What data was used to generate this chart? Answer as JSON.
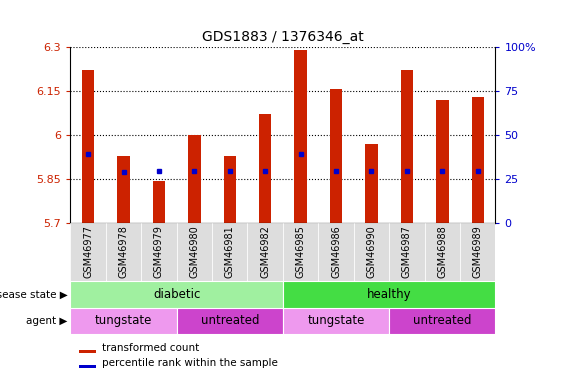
{
  "title": "GDS1883 / 1376346_at",
  "samples": [
    "GSM46977",
    "GSM46978",
    "GSM46979",
    "GSM46980",
    "GSM46981",
    "GSM46982",
    "GSM46985",
    "GSM46986",
    "GSM46990",
    "GSM46987",
    "GSM46988",
    "GSM46989"
  ],
  "bar_tops": [
    6.22,
    5.93,
    5.845,
    6.0,
    5.93,
    6.07,
    6.29,
    6.155,
    5.97,
    6.22,
    6.12,
    6.13
  ],
  "bar_bottoms": [
    5.7,
    5.7,
    5.7,
    5.7,
    5.7,
    5.7,
    5.7,
    5.7,
    5.7,
    5.7,
    5.7,
    5.7
  ],
  "percentile_values": [
    5.935,
    5.875,
    5.878,
    5.876,
    5.876,
    5.876,
    5.935,
    5.876,
    5.876,
    5.876,
    5.876,
    5.876
  ],
  "ylim": [
    5.7,
    6.3
  ],
  "yticks": [
    5.7,
    5.85,
    6.0,
    6.15,
    6.3
  ],
  "ytick_labels": [
    "5.7",
    "5.85",
    "6",
    "6.15",
    "6.3"
  ],
  "right_yticks_pct": [
    0,
    25,
    50,
    75,
    100
  ],
  "right_ytick_labels": [
    "0",
    "25",
    "50",
    "75",
    "100%"
  ],
  "bar_color": "#cc2200",
  "percentile_color": "#0000cc",
  "disease_state_groups": [
    {
      "label": "diabetic",
      "start": 0,
      "end": 6,
      "color": "#a0f0a0"
    },
    {
      "label": "healthy",
      "start": 6,
      "end": 12,
      "color": "#44dd44"
    }
  ],
  "agent_groups": [
    {
      "label": "tungstate",
      "start": 0,
      "end": 3,
      "color": "#ee99ee"
    },
    {
      "label": "untreated",
      "start": 3,
      "end": 6,
      "color": "#cc44cc"
    },
    {
      "label": "tungstate",
      "start": 6,
      "end": 9,
      "color": "#ee99ee"
    },
    {
      "label": "untreated",
      "start": 9,
      "end": 12,
      "color": "#cc44cc"
    }
  ],
  "legend_items": [
    {
      "label": "transformed count",
      "color": "#cc2200"
    },
    {
      "label": "percentile rank within the sample",
      "color": "#0000cc"
    }
  ],
  "ylabel_left_color": "#cc2200",
  "ylabel_right_color": "#0000cc",
  "disease_state_label": "disease state",
  "agent_label": "agent",
  "bg_color": "#dddddd",
  "bar_width": 0.35
}
